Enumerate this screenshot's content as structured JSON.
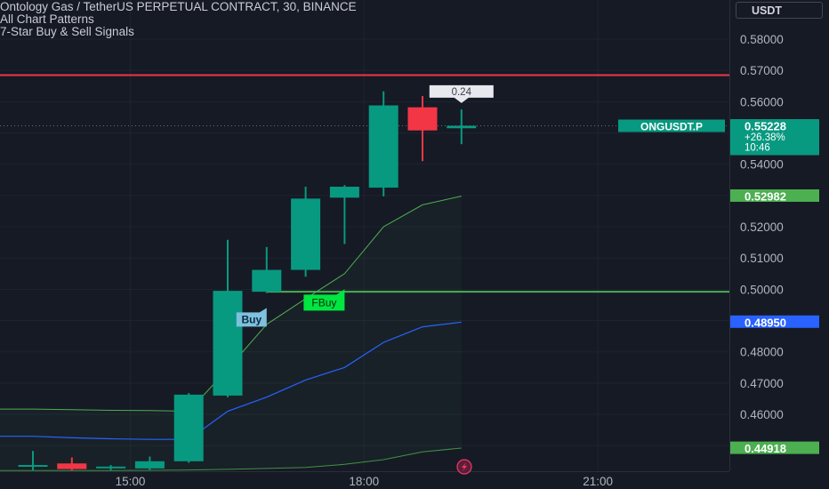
{
  "header": {
    "title": "Ontology Gas / TetherUS PERPETUAL CONTRACT, 30, BINANCE",
    "indicator1": "All Chart Patterns",
    "indicator2": "7-Star Buy & Sell Signals"
  },
  "currency_button": "USDT",
  "colors": {
    "background": "#161a25",
    "up": "#089981",
    "down": "#f23645",
    "resistance_line": "#f23645",
    "support_line": "#4caf50",
    "band_green": "#4caf50",
    "band_blue": "#2962ff",
    "buy_label": "#7ec0dd",
    "fbuy_label": "#00e640",
    "price_tag": "#089981",
    "upper_tag": "#4caf50",
    "blue_tag": "#2962ff"
  },
  "chart_data": {
    "type": "candlestick",
    "symbol": "ONGUSDT.P",
    "timeframe": "30",
    "exchange": "BINANCE",
    "y_axis": {
      "ticks": [
        0.58,
        0.57,
        0.56,
        0.55,
        0.54,
        0.53,
        0.52,
        0.51,
        0.5,
        0.49,
        0.48,
        0.47,
        0.46,
        0.45
      ],
      "tick_labels": [
        "0.58000",
        "0.57000",
        "0.56000",
        "",
        "0.54000",
        "",
        "0.52000",
        "0.51000",
        "0.50000",
        "",
        "0.48000",
        "0.47000",
        "0.46000",
        ""
      ],
      "range": [
        0.4418,
        0.5913
      ]
    },
    "x_axis": {
      "tick_labels": [
        "15:00",
        "18:00",
        "21:00"
      ],
      "tick_bar_index": [
        2.5,
        8.5,
        14.5
      ]
    },
    "candles": [
      {
        "i": 0,
        "open": 0.4435,
        "high": 0.4483,
        "low": 0.442,
        "close": 0.4438
      },
      {
        "i": 1,
        "open": 0.4443,
        "high": 0.4462,
        "low": 0.442,
        "close": 0.4425
      },
      {
        "i": 2,
        "open": 0.443,
        "high": 0.4438,
        "low": 0.442,
        "close": 0.4433
      },
      {
        "i": 3,
        "open": 0.4427,
        "high": 0.4465,
        "low": 0.442,
        "close": 0.445
      },
      {
        "i": 4,
        "open": 0.445,
        "high": 0.4668,
        "low": 0.4445,
        "close": 0.4663
      },
      {
        "i": 5,
        "open": 0.466,
        "high": 0.5158,
        "low": 0.4655,
        "close": 0.4995
      },
      {
        "i": 6,
        "open": 0.4992,
        "high": 0.5135,
        "low": 0.4988,
        "close": 0.5062
      },
      {
        "i": 7,
        "open": 0.5062,
        "high": 0.5328,
        "low": 0.504,
        "close": 0.529
      },
      {
        "i": 8,
        "open": 0.5293,
        "high": 0.5333,
        "low": 0.5145,
        "close": 0.5328
      },
      {
        "i": 9,
        "open": 0.5325,
        "high": 0.5633,
        "low": 0.5297,
        "close": 0.5588
      },
      {
        "i": 10,
        "open": 0.5582,
        "high": 0.5618,
        "low": 0.541,
        "close": 0.5508
      },
      {
        "i": 11,
        "open": 0.5515,
        "high": 0.5575,
        "low": 0.5464,
        "close": 0.5523
      }
    ],
    "upper_band": [
      0.4617,
      0.4615,
      0.4613,
      0.4612,
      0.461,
      0.4745,
      0.4888,
      0.497,
      0.505,
      0.52,
      0.527,
      0.5298
    ],
    "middle_band": [
      0.453,
      0.4525,
      0.4522,
      0.452,
      0.452,
      0.461,
      0.4655,
      0.471,
      0.475,
      0.483,
      0.488,
      0.4895
    ],
    "lower_band": [
      0.442,
      0.442,
      0.442,
      0.4421,
      0.4422,
      0.4424,
      0.4427,
      0.443,
      0.444,
      0.4455,
      0.448,
      0.4492
    ],
    "resistance_level": 0.5685,
    "support_level": 0.4992,
    "support_line_from_bar": 6,
    "current_price": 0.55228,
    "price_tags": [
      {
        "value": 0.55228,
        "label": "0.55228",
        "extra": [
          "+26.38%",
          "10:46"
        ],
        "color_key": "price_tag"
      },
      {
        "value": 0.52982,
        "label": "0.52982",
        "color_key": "upper_tag"
      },
      {
        "value": 0.4895,
        "label": "0.48950",
        "color_key": "blue_tag"
      },
      {
        "value": 0.44918,
        "label": "0.44918",
        "color_key": "upper_tag"
      }
    ],
    "symbol_tag": {
      "text": "ONGUSDT.P",
      "value": 0.55228
    },
    "signals": [
      {
        "text": "Buy",
        "bar": 6,
        "price": 0.4906,
        "style": "buy"
      },
      {
        "text": "FBuy",
        "bar": 8,
        "price": 0.496,
        "style": "fbuy"
      }
    ],
    "callout": {
      "text": "0.24",
      "bar": 11,
      "price": 0.561
    }
  }
}
